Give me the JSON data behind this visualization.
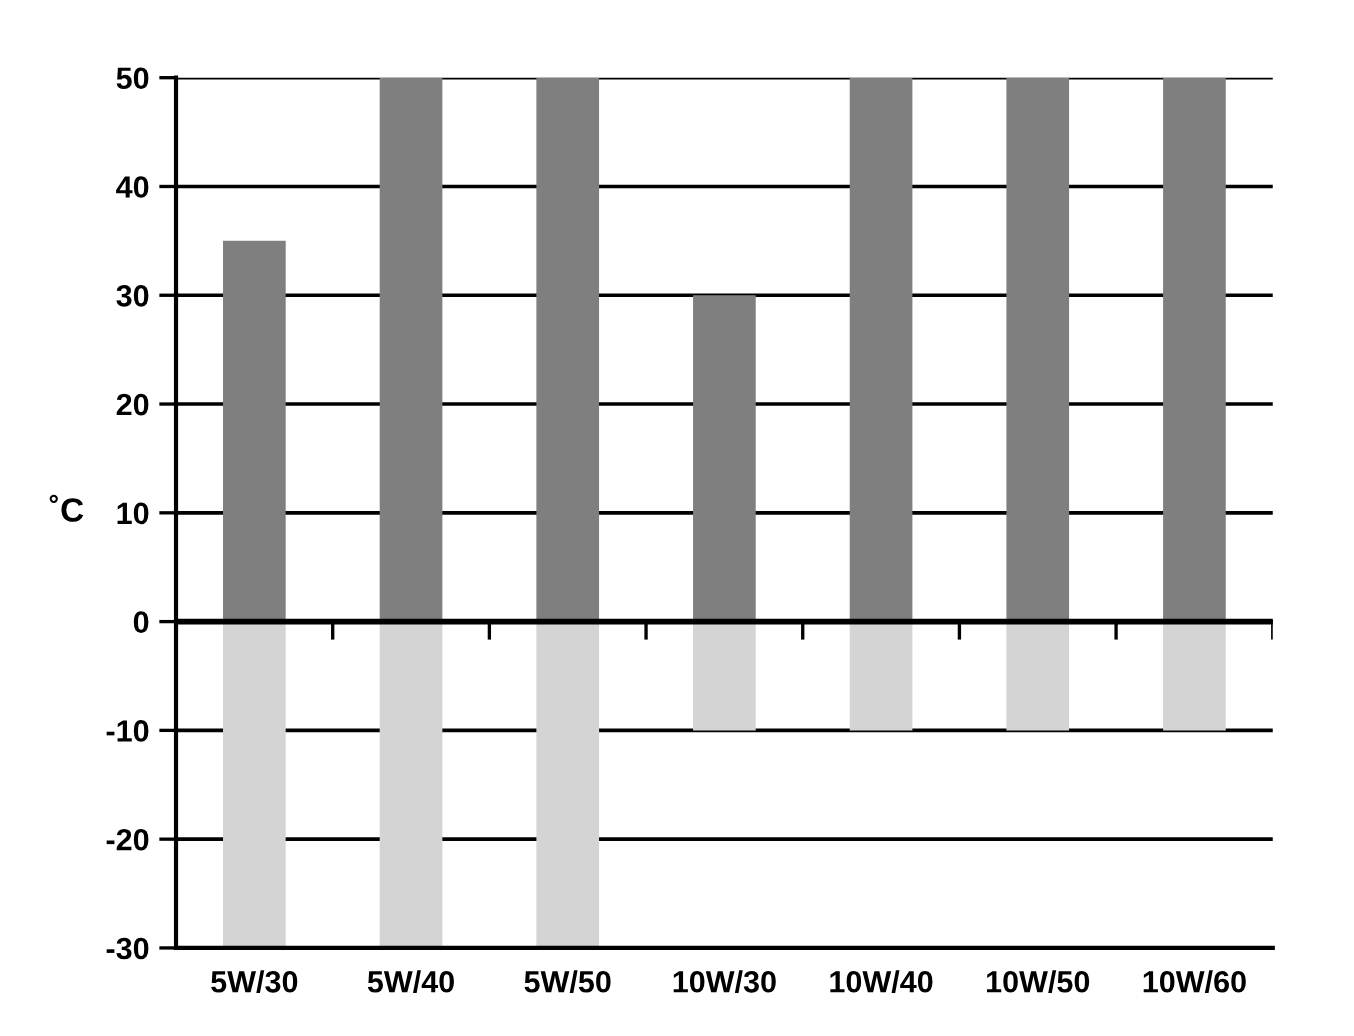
{
  "chart_data": {
    "type": "bar",
    "stacked": true,
    "ylabel": "˚C",
    "categories": [
      "5W/30",
      "5W/40",
      "5W/50",
      "10W/30",
      "10W/40",
      "10W/50",
      "10W/60"
    ],
    "series": [
      {
        "color": "#7f7f7f",
        "values": [
          35,
          50,
          50,
          30,
          50,
          50,
          50
        ]
      },
      {
        "color": "#d4d4d4",
        "values": [
          -30,
          -30,
          -30,
          -10,
          -10,
          -10,
          -10
        ]
      }
    ],
    "ylim": [
      -30,
      50
    ],
    "yticks": [
      -30,
      -20,
      -10,
      0,
      10,
      20,
      30,
      40,
      50
    ],
    "grid": "y",
    "ref_lines": [
      {
        "axis": "y",
        "value": 0,
        "color": "#000000"
      }
    ]
  }
}
